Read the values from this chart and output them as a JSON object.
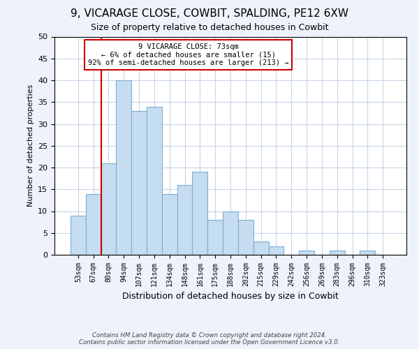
{
  "title": "9, VICARAGE CLOSE, COWBIT, SPALDING, PE12 6XW",
  "subtitle": "Size of property relative to detached houses in Cowbit",
  "xlabel": "Distribution of detached houses by size in Cowbit",
  "ylabel": "Number of detached properties",
  "bin_labels": [
    "53sqm",
    "67sqm",
    "80sqm",
    "94sqm",
    "107sqm",
    "121sqm",
    "134sqm",
    "148sqm",
    "161sqm",
    "175sqm",
    "188sqm",
    "202sqm",
    "215sqm",
    "229sqm",
    "242sqm",
    "256sqm",
    "269sqm",
    "283sqm",
    "296sqm",
    "310sqm",
    "323sqm"
  ],
  "bar_values": [
    9,
    14,
    21,
    40,
    33,
    34,
    14,
    16,
    19,
    8,
    10,
    8,
    3,
    2,
    0,
    1,
    0,
    1,
    0,
    1,
    0
  ],
  "bar_color": "#c6dcf0",
  "bar_edge_color": "#7bafd4",
  "ylim": [
    0,
    50
  ],
  "yticks": [
    0,
    5,
    10,
    15,
    20,
    25,
    30,
    35,
    40,
    45,
    50
  ],
  "vline_x": 1.5,
  "vline_color": "#cc0000",
  "annotation_title": "9 VICARAGE CLOSE: 73sqm",
  "annotation_line1": "← 6% of detached houses are smaller (15)",
  "annotation_line2": "92% of semi-detached houses are larger (213) →",
  "annotation_box_color": "#ffffff",
  "annotation_box_edge": "#cc0000",
  "footer_line1": "Contains HM Land Registry data © Crown copyright and database right 2024.",
  "footer_line2": "Contains public sector information licensed under the Open Government Licence v3.0.",
  "background_color": "#eef2fa",
  "plot_bg_color": "#ffffff",
  "grid_color": "#c8d4e8"
}
